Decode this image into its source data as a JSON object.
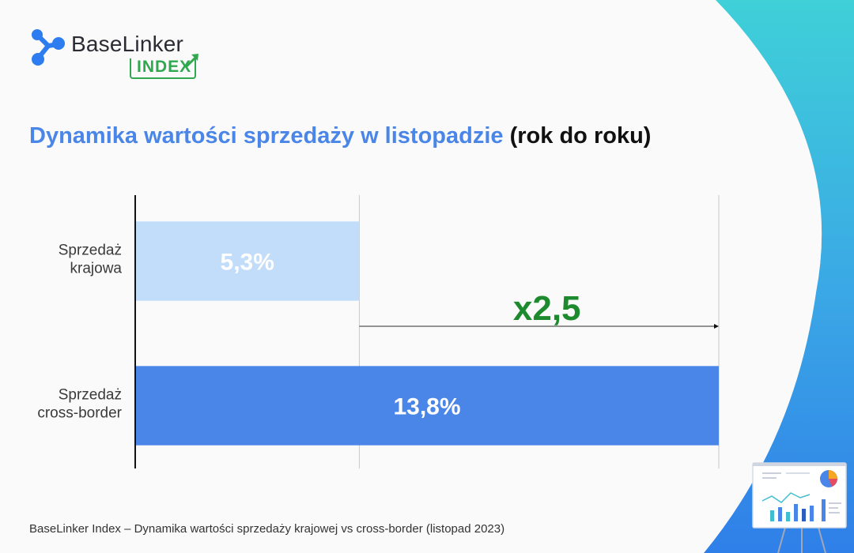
{
  "brand": {
    "name": "BaseLinker",
    "index_label": "INDEX"
  },
  "title": {
    "main": "Dynamika wartości sprzedaży w listopadzie",
    "suffix": "(rok do roku)"
  },
  "chart_data": {
    "type": "bar",
    "orientation": "horizontal",
    "categories": [
      [
        "Sprzedaż",
        "krajowa"
      ],
      [
        "Sprzedaż",
        "cross-border"
      ]
    ],
    "values": [
      5.3,
      13.8
    ],
    "data_labels": [
      "5,3%",
      "13,8%"
    ],
    "colors": [
      "#c2ddfa",
      "#4a86e8"
    ],
    "xlim": [
      0,
      13.8
    ],
    "grid": true,
    "annotation": {
      "text": "x2,5",
      "from_value": 5.3,
      "to_value": 13.8,
      "color": "#1e8a2e"
    }
  },
  "footer": {
    "caption": "BaseLinker Index – Dynamika wartości sprzedaży krajowej vs cross-border (listopad 2023)"
  }
}
